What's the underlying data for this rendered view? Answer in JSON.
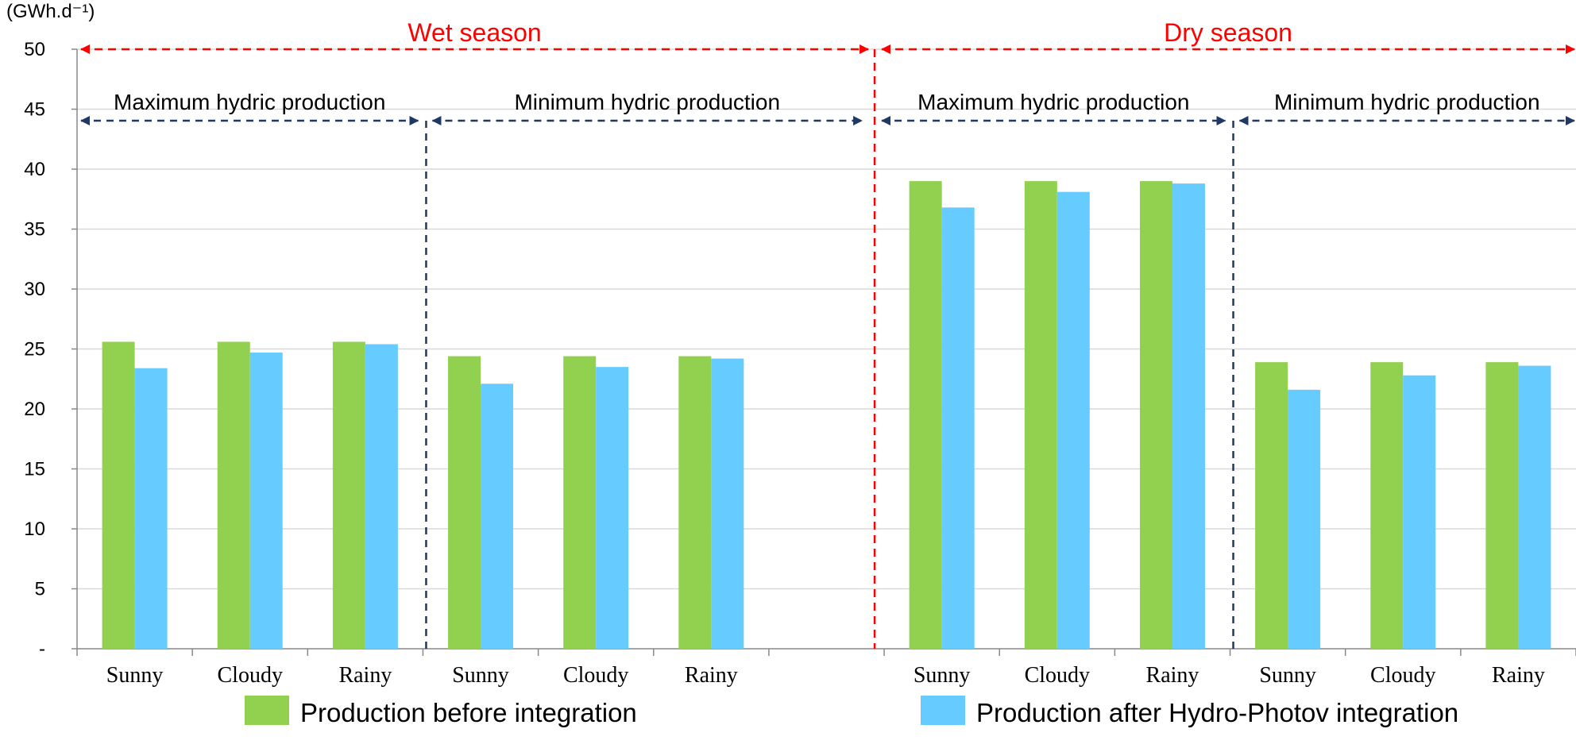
{
  "chart_data": {
    "type": "bar",
    "ylabel": "(GWh.d⁻¹)",
    "ylim": [
      0,
      50
    ],
    "ytick_step": 5,
    "y_zero_label": "-",
    "grid": true,
    "legend_placement": "bottom",
    "categories": [
      "Sunny",
      "Cloudy",
      "Rainy",
      "Sunny",
      "Cloudy",
      "Rainy",
      "",
      "Sunny",
      "Cloudy",
      "Rainy",
      "Sunny",
      "Cloudy",
      "Rainy"
    ],
    "series": [
      {
        "name": "Production before integration",
        "color": "#92d050",
        "values": [
          25.6,
          25.6,
          25.6,
          24.4,
          24.4,
          24.4,
          null,
          39.0,
          39.0,
          39.0,
          23.9,
          23.9,
          23.9
        ]
      },
      {
        "name": "Production after Hydro-Photov integration",
        "color": "#66ccff",
        "values": [
          23.4,
          24.7,
          25.4,
          22.1,
          23.5,
          24.2,
          null,
          36.8,
          38.1,
          38.8,
          21.6,
          22.8,
          23.6
        ]
      }
    ],
    "seasons": [
      {
        "label": "Wet season",
        "start": 0,
        "end": 7
      },
      {
        "label": "Dry season",
        "start": 7,
        "end": 13
      }
    ],
    "regimes": [
      {
        "label": "Maximum  hydric production",
        "start": 0,
        "end": 3
      },
      {
        "label": "Minimum hydric production",
        "start": 3,
        "end": 7
      },
      {
        "label": "Maximum  hydric production",
        "start": 7,
        "end": 10
      },
      {
        "label": "Minimum hydric production",
        "start": 10,
        "end": 13
      }
    ],
    "colors": {
      "season_divider": "#ff0000",
      "regime_divider": "#1f3864",
      "grid": "#d9d9d9",
      "axis": "#888888"
    }
  }
}
